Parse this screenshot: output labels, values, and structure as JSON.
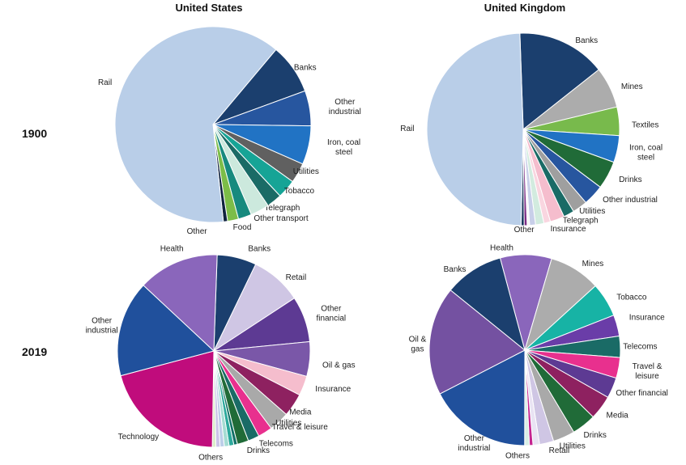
{
  "header": {
    "left_title": "United States",
    "right_title": "United Kingdom"
  },
  "rows": {
    "top": "1900",
    "bottom": "2019"
  },
  "palette": {
    "rail_light_blue": "#b9cee8",
    "banks_navy": "#1b3f6e",
    "other_industrial_1900": "#27569f",
    "iron_coal_steel_blue": "#2173c4",
    "utilities_dark_gray": "#606060",
    "mines_gray": "#acacac",
    "textiles_lime": "#78ba4c",
    "drinks_dark_green": "#206b38",
    "tobacco_teal": "#16a496",
    "telegraph_dark_teal": "#1a6b66",
    "technology_magenta": "#c00c7c",
    "travel_pink": "#e8308e",
    "media_maroon": "#8e2160",
    "health_purple": "#8a66bb",
    "oil_gas_purple": "#7451a1",
    "other_financial_purple": "#5d3a93",
    "retail_lavender": "#cfc6e4",
    "other_industrial_2019": "#20509c",
    "insurance_pink": "#f5bdcd"
  },
  "chart_data": [
    {
      "type": "pie",
      "country": "United States",
      "year": "1900",
      "units": "share of stock market capitalization (%)",
      "start_angle_deg": 40,
      "slices": [
        {
          "label": "Banks",
          "value": 8.3,
          "color": "#1b3f6e"
        },
        {
          "label": "Other industrial",
          "lines": [
            "Other",
            "industrial"
          ],
          "value": 5.8,
          "color": "#27569f"
        },
        {
          "label": "Iron, coal steel",
          "lines": [
            "Iron, coal",
            "steel"
          ],
          "value": 6.4,
          "color": "#2173c4"
        },
        {
          "label": "Utilities",
          "value": 3.3,
          "color": "#606060"
        },
        {
          "label": "Tobacco",
          "value": 3.1,
          "color": "#16a496"
        },
        {
          "label": "Telegraph",
          "value": 2.5,
          "color": "#1a6b66"
        },
        {
          "label": "Other transport",
          "value": 3.1,
          "color": "#cce9dd"
        },
        {
          "label": "Food",
          "value": 2.2,
          "color": "#178a7e"
        },
        {
          "label": "Other",
          "value": 1.8,
          "color": "#7cbd48"
        },
        {
          "label": "",
          "value": 0.7,
          "color": "#10233f"
        },
        {
          "label": "Rail",
          "value": 62.8,
          "color": "#b9cee8"
        }
      ]
    },
    {
      "type": "pie",
      "country": "United Kingdom",
      "year": "1900",
      "units": "share of stock market capitalization (%)",
      "start_angle_deg": -2,
      "slices": [
        {
          "label": "Banks",
          "value": 14.9,
          "color": "#1b3f6e"
        },
        {
          "label": "Mines",
          "value": 6.9,
          "color": "#acacac"
        },
        {
          "label": "Textiles",
          "value": 4.8,
          "color": "#78ba4c"
        },
        {
          "label": "Iron, coal steel",
          "lines": [
            "Iron, coal",
            "steel"
          ],
          "value": 4.5,
          "color": "#2173c4"
        },
        {
          "label": "Drinks",
          "value": 4.7,
          "color": "#206b38"
        },
        {
          "label": "Other industrial",
          "value": 3.5,
          "color": "#27569f"
        },
        {
          "label": "Utilities",
          "value": 2.5,
          "color": "#9f9f9f"
        },
        {
          "label": "Telegraph",
          "value": 1.8,
          "color": "#1a6b66"
        },
        {
          "label": "Insurance",
          "value": 2.4,
          "color": "#f5bdcd"
        },
        {
          "label": "",
          "value": 1.1,
          "color": "#f9d6e0"
        },
        {
          "label": "",
          "value": 1.4,
          "color": "#d2ebdf"
        },
        {
          "label": "Other",
          "value": 1.0,
          "color": "#c8cfe9"
        },
        {
          "label": "",
          "value": 0.4,
          "color": "#f5f5f7"
        },
        {
          "label": "",
          "value": 0.5,
          "color": "#7b2d84"
        },
        {
          "label": "",
          "value": 0.5,
          "color": "#16365c"
        },
        {
          "label": "Rail",
          "value": 49.1,
          "color": "#b9cee8"
        }
      ]
    },
    {
      "type": "pie",
      "country": "United States",
      "year": "2019",
      "units": "share of stock market capitalization (%)",
      "start_angle_deg": 2,
      "slices": [
        {
          "label": "Banks",
          "value": 6.6,
          "color": "#1b3f6e"
        },
        {
          "label": "Retail",
          "value": 8.6,
          "color": "#cfc6e4"
        },
        {
          "label": "Other financial",
          "lines": [
            "Other",
            "financial"
          ],
          "value": 7.7,
          "color": "#5d3a93"
        },
        {
          "label": "Oil & gas",
          "value": 5.8,
          "color": "#7a57a8"
        },
        {
          "label": "Insurance",
          "value": 3.3,
          "color": "#f5bdcd"
        },
        {
          "label": "Media",
          "value": 3.9,
          "color": "#8e2160"
        },
        {
          "label": "Utilities",
          "value": 3.4,
          "color": "#a9a9a9"
        },
        {
          "label": "Travel & leisure",
          "value": 2.4,
          "color": "#e8308e"
        },
        {
          "label": "Telecoms",
          "value": 1.9,
          "color": "#1a6b66"
        },
        {
          "label": "Drinks",
          "value": 1.9,
          "color": "#206b38"
        },
        {
          "label": "",
          "value": 0.6,
          "color": "#117066"
        },
        {
          "label": "",
          "value": 0.8,
          "color": "#2ca99c"
        },
        {
          "label": "Others",
          "value": 0.8,
          "color": "#a5dcd3"
        },
        {
          "label": "",
          "value": 0.7,
          "color": "#bccee8"
        },
        {
          "label": "",
          "value": 0.7,
          "color": "#cbc4e8"
        },
        {
          "label": "",
          "value": 0.6,
          "color": "#dcedc9"
        },
        {
          "label": "Technology",
          "value": 20.6,
          "color": "#c00c7c"
        },
        {
          "label": "Other industrial",
          "lines": [
            "Other",
            "industrial"
          ],
          "value": 16.1,
          "color": "#20509c"
        },
        {
          "label": "Health",
          "value": 13.6,
          "color": "#8a66bb"
        }
      ]
    },
    {
      "type": "pie",
      "country": "United Kingdom",
      "year": "2019",
      "units": "share of stock market capitalization (%)",
      "start_angle_deg": -15,
      "slices": [
        {
          "label": "Health",
          "value": 8.7,
          "color": "#8a66bb"
        },
        {
          "label": "Mines",
          "value": 8.7,
          "color": "#acacac"
        },
        {
          "label": "Tobacco",
          "value": 5.8,
          "color": "#17b3a5"
        },
        {
          "label": "Insurance",
          "value": 3.6,
          "color": "#6a3da8"
        },
        {
          "label": "Telecoms",
          "value": 3.6,
          "color": "#1a6b66"
        },
        {
          "label": "Travel & leisure",
          "lines": [
            "Travel &",
            "leisure"
          ],
          "value": 3.5,
          "color": "#e8308e"
        },
        {
          "label": "Other financial",
          "value": 3.5,
          "color": "#5d3a93"
        },
        {
          "label": "Media",
          "value": 4.1,
          "color": "#8e2160"
        },
        {
          "label": "Drinks",
          "value": 4.1,
          "color": "#206b38"
        },
        {
          "label": "Utilities",
          "value": 3.7,
          "color": "#a9a9a9"
        },
        {
          "label": "Retail",
          "value": 2.4,
          "color": "#cfc6e4"
        },
        {
          "label": "Others",
          "value": 1.1,
          "color": "#e9e3f3"
        },
        {
          "label": "",
          "value": 0.6,
          "color": "#c52490"
        },
        {
          "label": "",
          "value": 0.8,
          "color": "#d9efe6"
        },
        {
          "label": "Other industrial",
          "lines": [
            "Other",
            "industrial"
          ],
          "value": 17.4,
          "color": "#20509c"
        },
        {
          "label": "Oil & gas",
          "lines": [
            "Oil &",
            "gas"
          ],
          "value": 18.4,
          "color": "#7451a1"
        },
        {
          "label": "Banks",
          "value": 10.0,
          "color": "#1b3f6e"
        }
      ]
    }
  ]
}
